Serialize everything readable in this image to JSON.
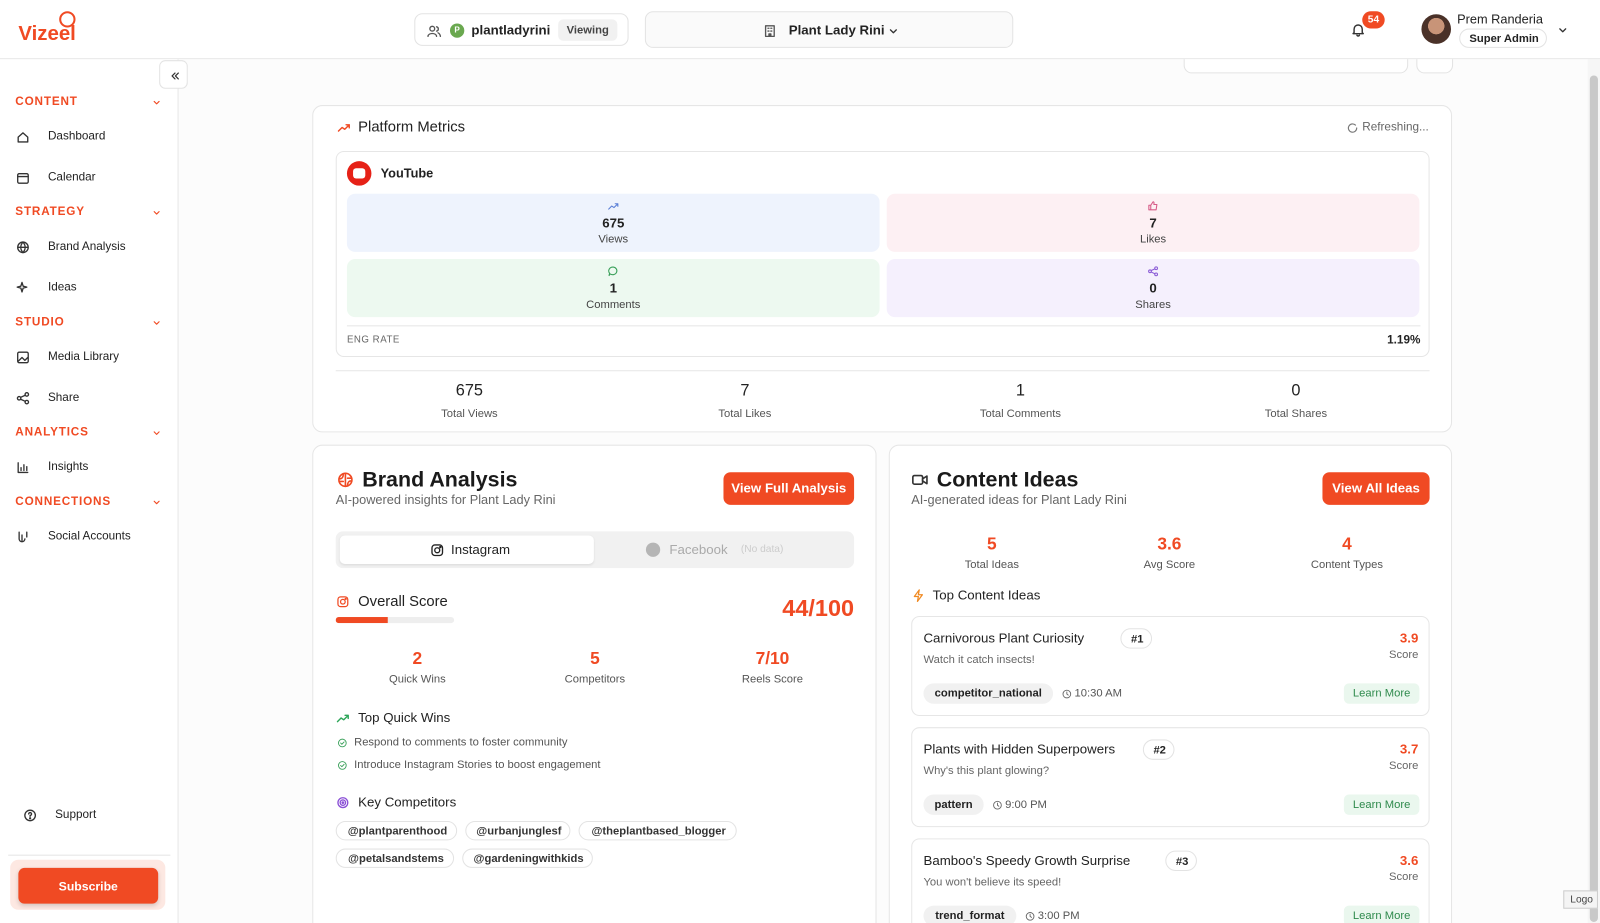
{
  "app": {
    "logo": "Vizeel",
    "corner_label": "Logo"
  },
  "topbar": {
    "account_initial": "P",
    "account": "plantladyrini",
    "account_status": "Viewing",
    "brand": "Plant Lady Rini",
    "notification_count": 54,
    "user_name": "Prem Randeria",
    "user_role": "Super Admin"
  },
  "sidebar": {
    "sections": [
      {
        "title": "CONTENT",
        "items": [
          "Dashboard",
          "Calendar"
        ]
      },
      {
        "title": "STRATEGY",
        "items": [
          "Brand Analysis",
          "Ideas"
        ]
      },
      {
        "title": "STUDIO",
        "items": [
          "Media Library",
          "Share"
        ]
      },
      {
        "title": "ANALYTICS",
        "items": [
          "Insights"
        ]
      },
      {
        "title": "CONNECTIONS",
        "items": [
          "Social Accounts"
        ]
      }
    ],
    "support": "Support",
    "subscribe": "Subscribe"
  },
  "platform_metrics": {
    "title": "Platform Metrics",
    "status": "Refreshing...",
    "platform": "YouTube",
    "metrics": [
      {
        "value": 675,
        "label": "Views"
      },
      {
        "value": 7,
        "label": "Likes"
      },
      {
        "value": 1,
        "label": "Comments"
      },
      {
        "value": 0,
        "label": "Shares"
      }
    ],
    "eng_rate_label": "ENG RATE",
    "eng_rate": "1.19%",
    "totals": [
      {
        "value": 675,
        "label": "Total Views"
      },
      {
        "value": 7,
        "label": "Total Likes"
      },
      {
        "value": 1,
        "label": "Total Comments"
      },
      {
        "value": 0,
        "label": "Total Shares"
      }
    ]
  },
  "brand_analysis": {
    "title": "Brand Analysis",
    "subtitle": "AI-powered insights for Plant Lady Rini",
    "button": "View Full Analysis",
    "tabs": [
      {
        "label": "Instagram"
      },
      {
        "label": "Facebook",
        "note": "(No data)"
      }
    ],
    "score_label": "Overall Score",
    "score": "44/100",
    "stats": [
      {
        "value": 2,
        "label": "Quick Wins"
      },
      {
        "value": 5,
        "label": "Competitors"
      },
      {
        "value": "7/10",
        "label": "Reels Score"
      }
    ],
    "quick_wins_title": "Top Quick Wins",
    "quick_wins": [
      "Respond to comments to foster community",
      "Introduce Instagram Stories to boost engagement"
    ],
    "competitors_title": "Key Competitors",
    "competitors": [
      "@plantparenthood",
      "@urbanjunglesf",
      "@theplantbased_blogger",
      "@petalsandstems",
      "@gardeningwithkids"
    ]
  },
  "content_ideas": {
    "title": "Content Ideas",
    "subtitle": "AI-generated ideas for Plant Lady Rini",
    "button": "View All Ideas",
    "stats": [
      {
        "value": 5,
        "label": "Total Ideas"
      },
      {
        "value": 3.6,
        "label": "Avg Score"
      },
      {
        "value": 4,
        "label": "Content Types"
      }
    ],
    "list_title": "Top Content Ideas",
    "score_label": "Score",
    "action": "Learn More",
    "ideas": [
      {
        "title": "Carnivorous Plant Curiosity",
        "rank": "#1",
        "description": "Watch it catch insects!",
        "score": 3.9,
        "tag": "competitor_national",
        "time": "10:30 AM"
      },
      {
        "title": "Plants with Hidden Superpowers",
        "rank": "#2",
        "description": "Why's this plant glowing?",
        "score": 3.7,
        "tag": "pattern",
        "time": "9:00 PM"
      },
      {
        "title": "Bamboo's Speedy Growth Surprise",
        "rank": "#3",
        "description": "You won't believe its speed!",
        "score": 3.6,
        "tag": "trend_format",
        "time": "3:00 PM"
      }
    ]
  }
}
